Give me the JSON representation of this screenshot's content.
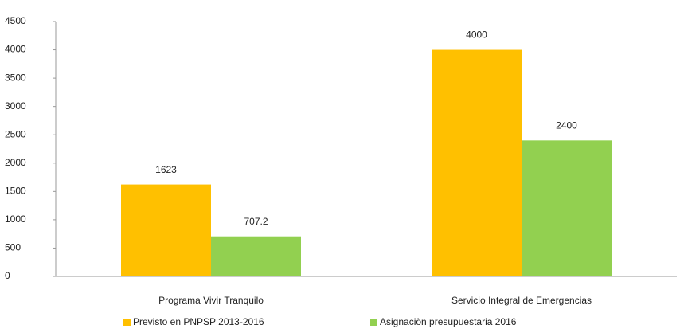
{
  "chart_data": {
    "type": "bar",
    "categories": [
      "Programa Vivir Tranquilo",
      "Servicio Integral de Emergencias"
    ],
    "series": [
      {
        "name": "Previsto en PNPSP 2013-2016",
        "color": "#ffc000",
        "values": [
          1623,
          4000
        ]
      },
      {
        "name": "Asignaciòn presupuestaria 2016",
        "color": "#92d050",
        "values": [
          707.2,
          2400
        ]
      }
    ],
    "ylim": [
      0,
      4500
    ],
    "yticks": [
      0,
      500,
      1000,
      1500,
      2000,
      2500,
      3000,
      3500,
      4000,
      4500
    ],
    "grid": false
  }
}
